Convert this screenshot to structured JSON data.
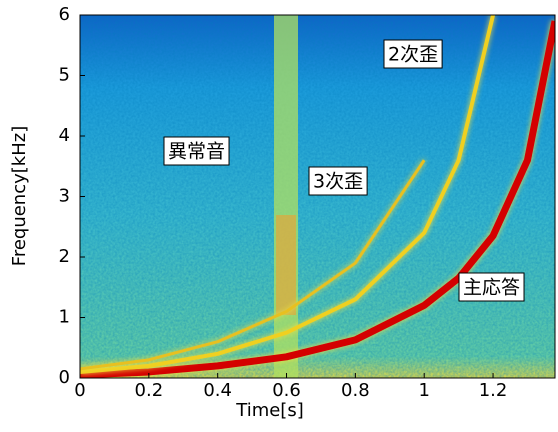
{
  "chart_data": {
    "type": "spectrogram",
    "x_label": "Time[s]",
    "y_label": "Frequency[kHz]",
    "xlim": [
      0,
      1.38
    ],
    "ylim": [
      0,
      6
    ],
    "xticks": [
      0,
      0.2,
      0.4,
      0.6,
      0.8,
      1,
      1.2
    ],
    "yticks": [
      0,
      1,
      2,
      3,
      4,
      5,
      6
    ],
    "x": [
      0,
      0.2,
      0.4,
      0.6,
      0.8,
      1,
      1.1,
      1.2,
      1.3,
      1.38
    ],
    "series": [
      {
        "name": "主応答",
        "color": "#d40000",
        "values": [
          0.05,
          0.1,
          0.2,
          0.35,
          0.63,
          1.2,
          1.65,
          2.35,
          3.6,
          5.9
        ]
      },
      {
        "name": "2次歪",
        "color": "#f0d020",
        "values": [
          0.1,
          0.2,
          0.4,
          0.75,
          1.3,
          2.4,
          3.6,
          6,
          null,
          null
        ]
      },
      {
        "name": "3次歪",
        "color": "#e8c020",
        "values": [
          0.15,
          0.3,
          0.6,
          1.1,
          1.9,
          3.6,
          null,
          null,
          null,
          null
        ]
      }
    ],
    "annotations": [
      "異常音"
    ]
  }
}
